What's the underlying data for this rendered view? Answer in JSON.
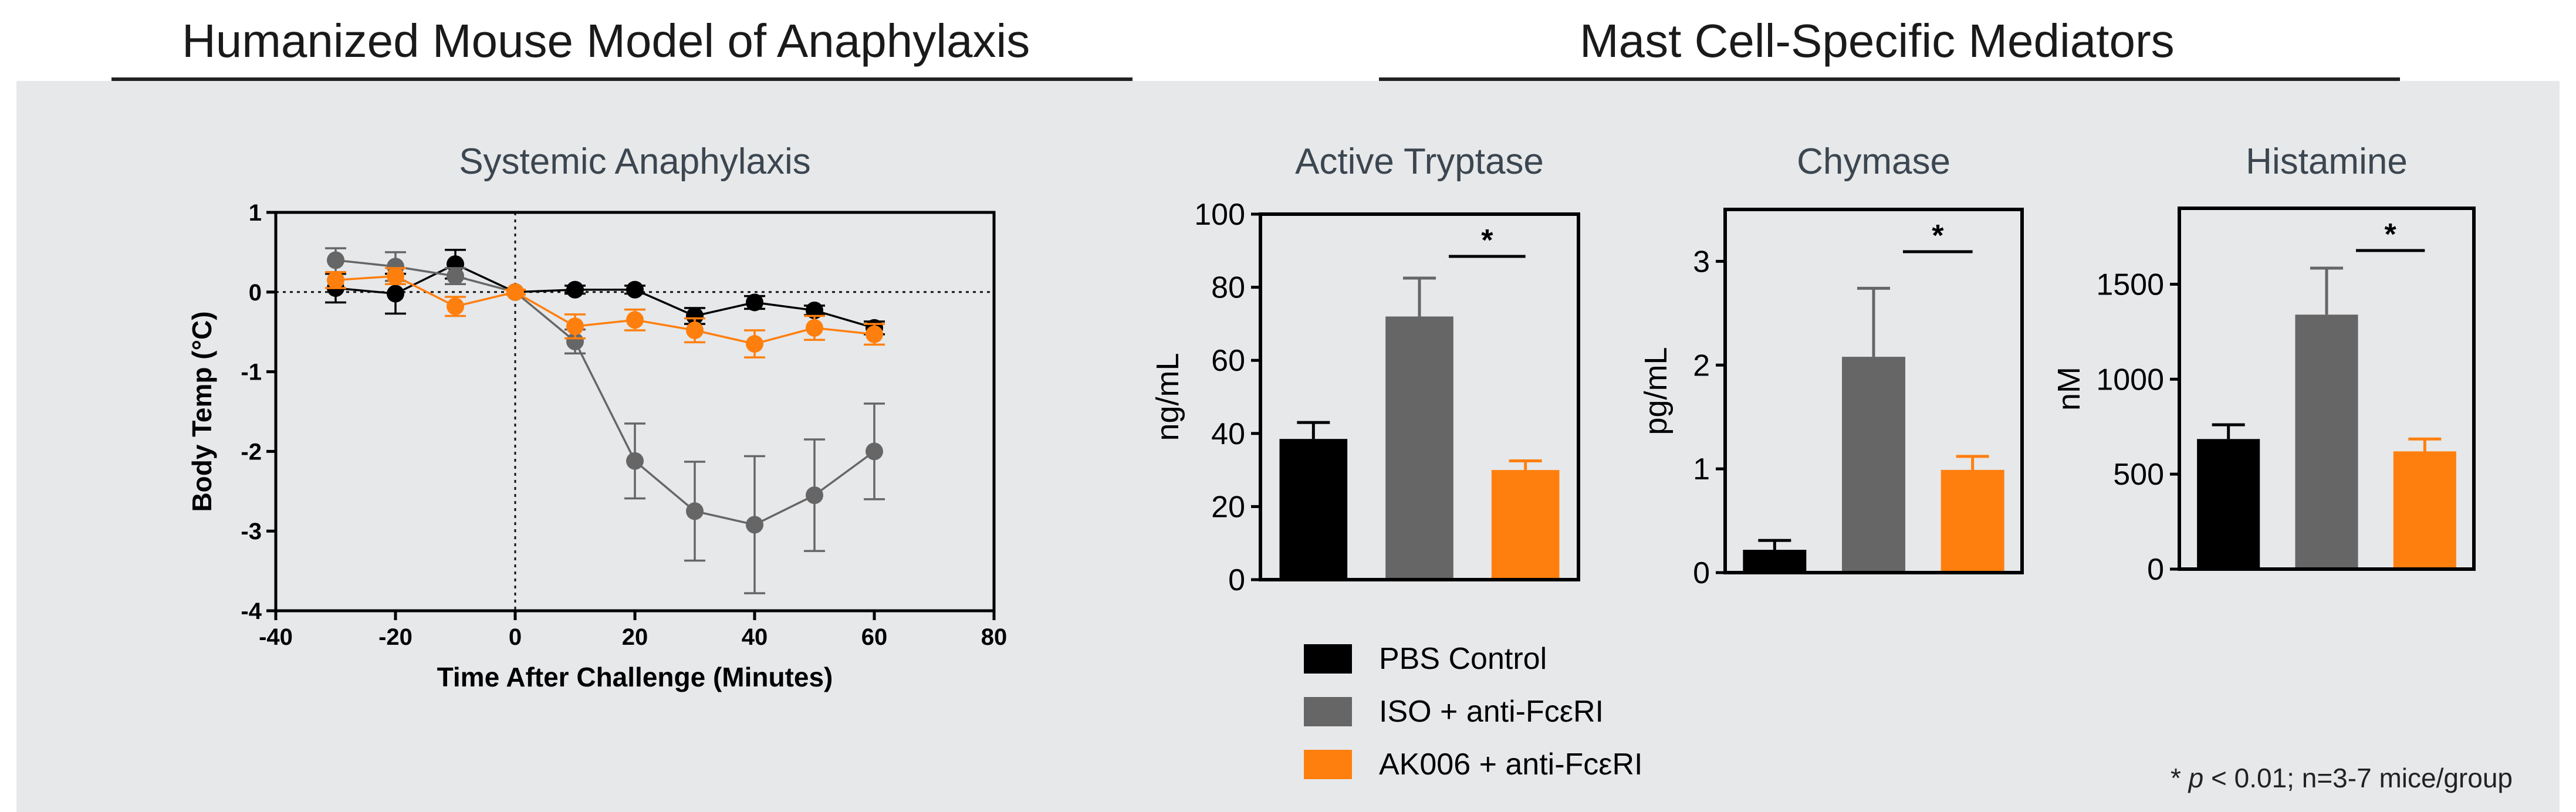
{
  "headers": {
    "left": "Humanized Mouse Model of Anaphylaxis",
    "right": "Mast Cell-Specific Mediators"
  },
  "colors": {
    "pbs": "#000000",
    "iso": "#666666",
    "ak006": "#ff7f0e",
    "background": "#e6e8ea"
  },
  "chart_data": [
    {
      "type": "line",
      "title": "Systemic Anaphylaxis",
      "xlabel": "Time After Challenge (Minutes)",
      "ylabel": "Body Temp (°C)",
      "xlim": [
        -40,
        80
      ],
      "ylim": [
        -4,
        1
      ],
      "xticks": [
        -40,
        -20,
        0,
        20,
        40,
        60,
        80
      ],
      "yticks": [
        1,
        0,
        -1,
        -2,
        -3,
        -4
      ],
      "x": [
        -30,
        -20,
        -10,
        0,
        10,
        20,
        30,
        40,
        50,
        60
      ],
      "series": [
        {
          "name": "PBS Control",
          "color": "#000000",
          "values": [
            0.05,
            -0.02,
            0.35,
            0.0,
            0.03,
            0.03,
            -0.3,
            -0.13,
            -0.23,
            -0.45
          ],
          "errors": [
            0.18,
            0.25,
            0.18,
            0.03,
            0.05,
            0.05,
            0.1,
            0.08,
            0.06,
            0.08
          ]
        },
        {
          "name": "ISO + anti-FcεRI",
          "color": "#666666",
          "values": [
            0.4,
            0.32,
            0.2,
            0.0,
            -0.62,
            -2.12,
            -2.75,
            -2.92,
            -2.55,
            -2.0
          ],
          "errors": [
            0.15,
            0.18,
            0.1,
            0.03,
            0.15,
            0.47,
            0.62,
            0.86,
            0.7,
            0.6
          ]
        },
        {
          "name": "AK006 + anti-FcεRI",
          "color": "#ff7f0e",
          "values": [
            0.15,
            0.2,
            -0.18,
            0.0,
            -0.43,
            -0.35,
            -0.48,
            -0.65,
            -0.45,
            -0.53
          ],
          "errors": [
            0.1,
            0.1,
            0.12,
            0.03,
            0.15,
            0.13,
            0.15,
            0.17,
            0.15,
            0.13
          ]
        }
      ]
    },
    {
      "type": "bar",
      "title": "Active Tryptase",
      "ylabel": "ng/mL",
      "ylim": [
        0,
        100
      ],
      "yticks": [
        0,
        20,
        40,
        60,
        80,
        100
      ],
      "categories": [
        "PBS Control",
        "ISO + anti-FcεRI",
        "AK006 + anti-FcεRI"
      ],
      "values": [
        38.5,
        72,
        30
      ],
      "errors": [
        4.5,
        10.5,
        2.5
      ],
      "colors": [
        "#000000",
        "#666666",
        "#ff7f0e"
      ],
      "significance": {
        "between": [
          1,
          2
        ],
        "label": "*"
      }
    },
    {
      "type": "bar",
      "title": "Chymase",
      "ylabel": "pg/mL",
      "ylim": [
        0,
        3.5
      ],
      "yticks": [
        0,
        1,
        2,
        3
      ],
      "categories": [
        "PBS Control",
        "ISO + anti-FcεRI",
        "AK006 + anti-FcεRI"
      ],
      "values": [
        0.22,
        2.08,
        0.99
      ],
      "errors": [
        0.09,
        0.66,
        0.13
      ],
      "colors": [
        "#000000",
        "#666666",
        "#ff7f0e"
      ],
      "significance": {
        "between": [
          1,
          2
        ],
        "label": "*"
      }
    },
    {
      "type": "bar",
      "title": "Histamine",
      "ylabel": "nM",
      "ylim": [
        0,
        1900
      ],
      "yticks": [
        0,
        500,
        1000,
        1500
      ],
      "categories": [
        "PBS Control",
        "ISO + anti-FcεRI",
        "AK006 + anti-FcεRI"
      ],
      "values": [
        685,
        1340,
        620
      ],
      "errors": [
        75,
        245,
        65
      ],
      "colors": [
        "#000000",
        "#666666",
        "#ff7f0e"
      ],
      "significance": {
        "between": [
          1,
          2
        ],
        "label": "*"
      }
    }
  ],
  "legend": [
    {
      "label": "PBS Control",
      "color": "#000000"
    },
    {
      "label": "ISO + anti-FcεRI",
      "color": "#666666"
    },
    {
      "label": "AK006 + anti-FcεRI",
      "color": "#ff7f0e"
    }
  ],
  "footnote": {
    "star": "* ",
    "p": "p",
    "rest": " < 0.01; n=3-7 mice/group"
  }
}
